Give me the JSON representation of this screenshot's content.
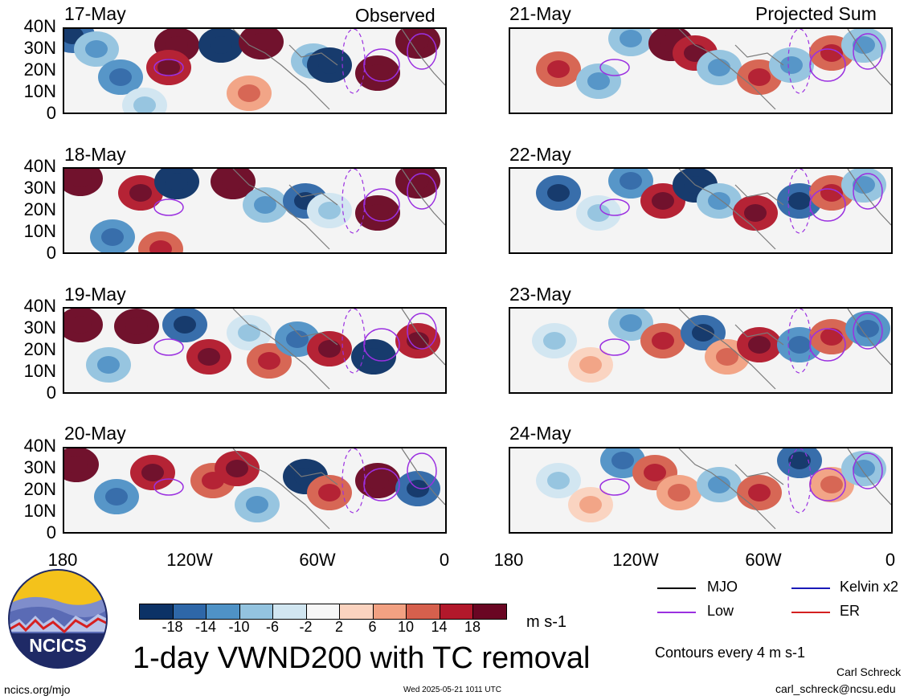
{
  "headers": {
    "observed": "Observed",
    "projected": "Projected Sum"
  },
  "panels": [
    {
      "id": "p1",
      "date": "17-May",
      "col": 0,
      "row": 0
    },
    {
      "id": "p2",
      "date": "18-May",
      "col": 0,
      "row": 1
    },
    {
      "id": "p3",
      "date": "19-May",
      "col": 0,
      "row": 2
    },
    {
      "id": "p4",
      "date": "20-May",
      "col": 0,
      "row": 3
    },
    {
      "id": "p5",
      "date": "21-May",
      "col": 1,
      "row": 0
    },
    {
      "id": "p6",
      "date": "22-May",
      "col": 1,
      "row": 1
    },
    {
      "id": "p7",
      "date": "23-May",
      "col": 1,
      "row": 2
    },
    {
      "id": "p8",
      "date": "24-May",
      "col": 1,
      "row": 3
    }
  ],
  "lat_labels": [
    "40N",
    "30N",
    "20N",
    "10N",
    "0"
  ],
  "lon_labels": [
    "180",
    "120W",
    "60W",
    "0"
  ],
  "colorbar": {
    "colors": [
      "#0c3266",
      "#2e67a8",
      "#4f92c6",
      "#93c3df",
      "#d1e6f1",
      "#f7f7f7",
      "#fbd3bf",
      "#f2a182",
      "#d6604d",
      "#b2182b",
      "#6a0623"
    ],
    "ticks": [
      "-18",
      "-14",
      "-10",
      "-6",
      "-2",
      "2",
      "6",
      "10",
      "14",
      "18"
    ],
    "units": "m s-1"
  },
  "legend": {
    "items": [
      {
        "label": "MJO",
        "color": "#000000"
      },
      {
        "label": "Kelvin x2",
        "color": "#1a1ab8"
      },
      {
        "label": "Low",
        "color": "#9b30e0"
      },
      {
        "label": "ER",
        "color": "#d42020"
      }
    ],
    "contour_note": "Contours every 4 m s-1"
  },
  "title": "1-day VWND200 with TC removal",
  "footer": {
    "site": "ncics.org/mjo",
    "timestamp": "Wed 2025-05-21 1011 UTC",
    "author": "Carl Schreck",
    "email": "carl_schreck@ncsu.edu"
  },
  "logo_text": "NCICS"
}
